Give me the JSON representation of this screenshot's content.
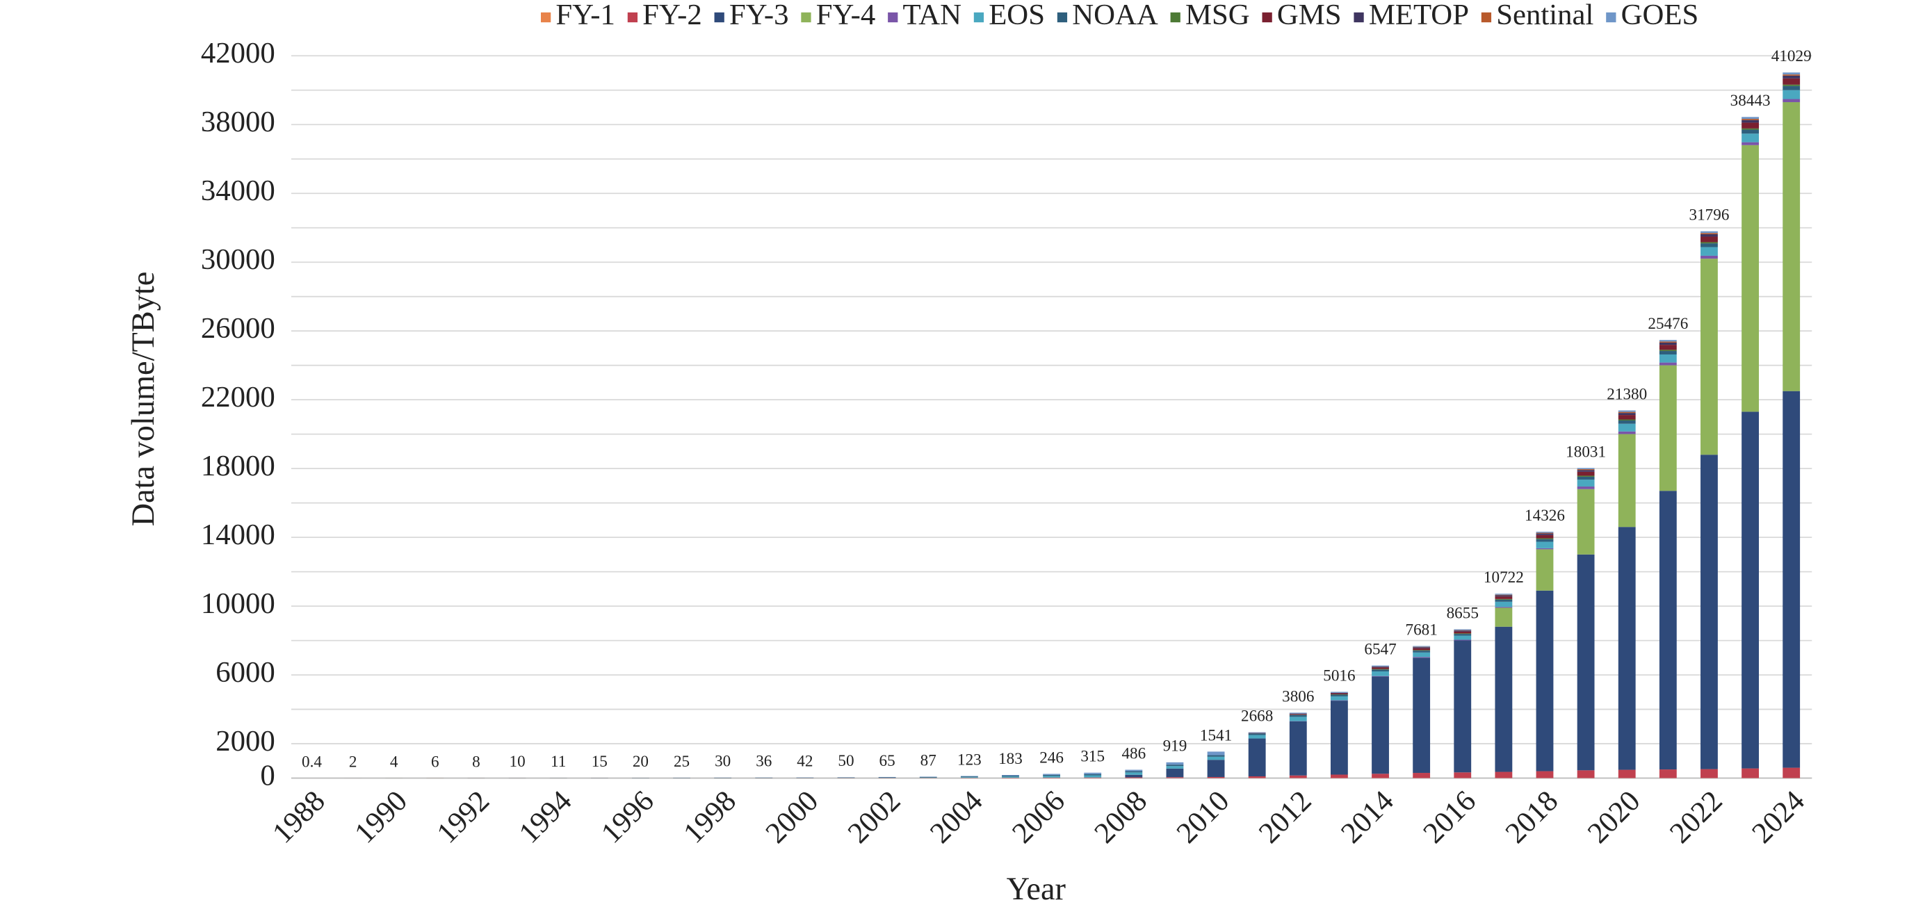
{
  "chart_data": {
    "type": "stacked_bar",
    "xlabel": "Year",
    "ylabel": "Data volume/TByte",
    "categories": [
      "1988",
      null,
      "1990",
      null,
      "1992",
      null,
      "1994",
      null,
      "1996",
      null,
      "1998",
      null,
      "2000",
      null,
      "2002",
      null,
      "2004",
      null,
      "2006",
      null,
      "2008",
      null,
      "2010",
      null,
      "2012",
      null,
      "2014",
      null,
      "2016",
      null,
      "2018",
      null,
      "2020",
      null,
      "2022",
      null,
      "2024"
    ],
    "totals": [
      0.4,
      2,
      4,
      6,
      8,
      10,
      11,
      15,
      20,
      25,
      30,
      36,
      42,
      50,
      65,
      87,
      123,
      183,
      246,
      315,
      486,
      919,
      1541,
      2668,
      3806,
      5016,
      6547,
      7681,
      8655,
      10722,
      14326,
      18031,
      21380,
      25476,
      31796,
      38443,
      41029
    ],
    "series": [
      {
        "name": "FY-1",
        "color": "#e8834a",
        "values": [
          0.4,
          1,
          2,
          3,
          3,
          3,
          3,
          4,
          4,
          4,
          4,
          4,
          4,
          4,
          4,
          4,
          4,
          4,
          4,
          4,
          4,
          4,
          4,
          4,
          4,
          4,
          4,
          4,
          4,
          4,
          4,
          4,
          4,
          4,
          4,
          4,
          4
        ]
      },
      {
        "name": "FY-2",
        "color": "#c0404f",
        "values": [
          0,
          0,
          0,
          0,
          0,
          0,
          0,
          0,
          0,
          0,
          2,
          4,
          6,
          8,
          10,
          12,
          15,
          20,
          25,
          30,
          40,
          50,
          60,
          100,
          150,
          200,
          250,
          300,
          330,
          360,
          400,
          450,
          480,
          500,
          520,
          560,
          600
        ]
      },
      {
        "name": "FY-3",
        "color": "#2f4a7a",
        "values": [
          0,
          0,
          0,
          0,
          0,
          0,
          0,
          0,
          0,
          0,
          0,
          0,
          0,
          0,
          0,
          0,
          0,
          0,
          0,
          0,
          150,
          500,
          1000,
          2200,
          3150,
          4300,
          5650,
          6700,
          7670,
          8440,
          10500,
          12550,
          14120,
          16200,
          18280,
          20740,
          21900
        ]
      },
      {
        "name": "FY-4",
        "color": "#8fb35a",
        "values": [
          0,
          0,
          0,
          0,
          0,
          0,
          0,
          0,
          0,
          0,
          0,
          0,
          0,
          0,
          0,
          0,
          0,
          0,
          0,
          0,
          0,
          0,
          0,
          0,
          0,
          0,
          0,
          0,
          0,
          1100,
          2400,
          3800,
          5400,
          7300,
          11400,
          15500,
          16800
        ]
      },
      {
        "name": "TAN",
        "color": "#7a55a8",
        "values": [
          0,
          0,
          0,
          0,
          0,
          0,
          0,
          0,
          0,
          0,
          0,
          0,
          0,
          0,
          0,
          0,
          0,
          0,
          0,
          0,
          0,
          0,
          0,
          0,
          10,
          20,
          30,
          40,
          40,
          50,
          60,
          150,
          150,
          160,
          170,
          170,
          180
        ]
      },
      {
        "name": "EOS",
        "color": "#4aa8c0",
        "values": [
          0,
          0,
          0,
          0,
          0,
          0,
          0,
          0,
          0,
          0,
          0,
          0,
          0,
          0,
          0,
          20,
          40,
          70,
          100,
          130,
          140,
          150,
          180,
          200,
          250,
          230,
          270,
          260,
          240,
          300,
          380,
          400,
          450,
          470,
          500,
          500,
          520
        ]
      },
      {
        "name": "NOAA",
        "color": "#2e5f7d",
        "values": [
          0,
          1,
          2,
          3,
          4,
          5,
          6,
          8,
          12,
          15,
          18,
          20,
          22,
          25,
          30,
          35,
          40,
          50,
          60,
          70,
          70,
          80,
          90,
          100,
          110,
          100,
          110,
          110,
          100,
          120,
          150,
          170,
          190,
          200,
          220,
          230,
          240
        ]
      },
      {
        "name": "MSG",
        "color": "#4d7a35",
        "values": [
          0,
          0,
          0,
          0,
          0,
          0,
          0,
          0,
          0,
          0,
          0,
          0,
          0,
          0,
          0,
          0,
          0,
          0,
          0,
          0,
          0,
          0,
          0,
          0,
          10,
          20,
          30,
          30,
          30,
          40,
          50,
          60,
          60,
          70,
          70,
          70,
          80
        ]
      },
      {
        "name": "GMS",
        "color": "#7a2030",
        "values": [
          0,
          0,
          0,
          0,
          0,
          0,
          0,
          0,
          0,
          0,
          0,
          0,
          0,
          0,
          0,
          0,
          0,
          0,
          0,
          0,
          0,
          0,
          0,
          20,
          50,
          60,
          90,
          110,
          110,
          150,
          190,
          230,
          260,
          290,
          320,
          340,
          360
        ]
      },
      {
        "name": "METOP",
        "color": "#3f3560",
        "values": [
          0,
          0,
          0,
          0,
          0,
          0,
          0,
          0,
          0,
          0,
          0,
          0,
          0,
          0,
          0,
          0,
          0,
          0,
          0,
          0,
          0,
          0,
          0,
          10,
          20,
          30,
          50,
          60,
          60,
          70,
          90,
          100,
          120,
          130,
          140,
          150,
          160
        ]
      },
      {
        "name": "Sentinal",
        "color": "#b85a2c",
        "values": [
          0,
          0,
          0,
          0,
          0,
          0,
          0,
          0,
          0,
          0,
          0,
          0,
          0,
          0,
          0,
          0,
          0,
          0,
          0,
          0,
          0,
          0,
          0,
          0,
          0,
          0,
          10,
          20,
          20,
          30,
          40,
          50,
          60,
          60,
          70,
          70,
          70
        ]
      },
      {
        "name": "GOES",
        "color": "#6f96c8",
        "values": [
          0,
          0,
          0,
          0,
          1,
          2,
          2,
          3,
          4,
          6,
          6,
          8,
          10,
          13,
          21,
          16,
          24,
          39,
          57,
          81,
          82,
          135,
          207,
          34,
          52,
          52,
          53,
          47,
          51,
          58,
          62,
          67,
          86,
          92,
          102,
          109,
          115
        ]
      }
    ],
    "ylim": [
      0,
      42000
    ],
    "yticks": [
      0,
      2000,
      6000,
      10000,
      14000,
      18000,
      22000,
      26000,
      30000,
      34000,
      38000,
      42000
    ],
    "grid": true,
    "grid_lines": [
      0,
      2000,
      4000,
      6000,
      8000,
      10000,
      12000,
      14000,
      16000,
      18000,
      20000,
      22000,
      24000,
      26000,
      28000,
      30000,
      32000,
      34000,
      36000,
      38000,
      40000,
      42000
    ]
  }
}
